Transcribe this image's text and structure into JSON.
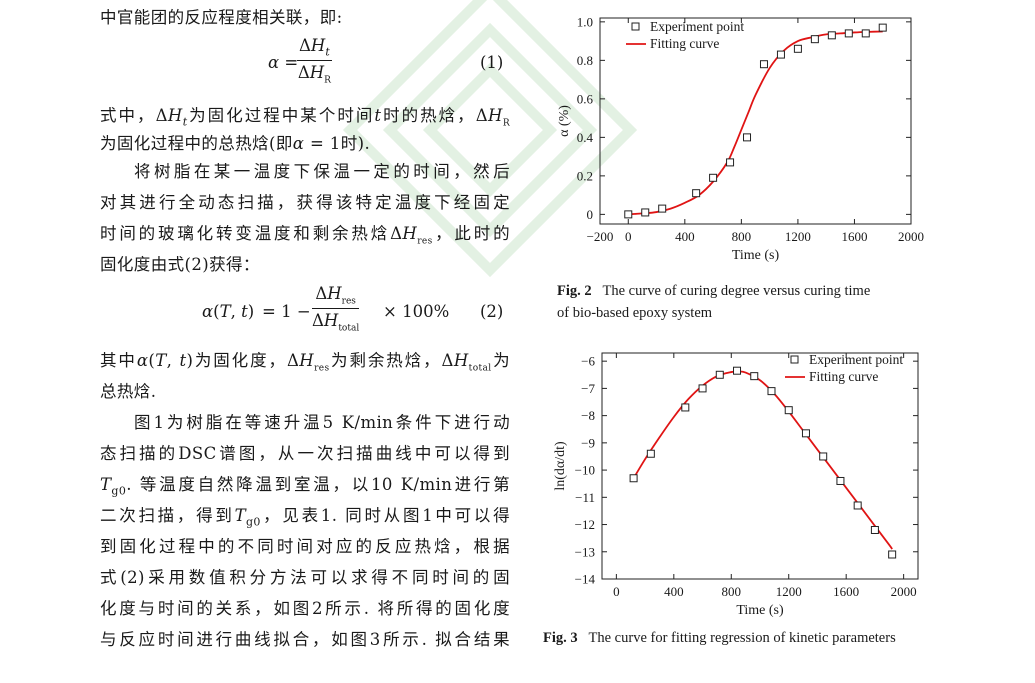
{
  "text": {
    "l1": "中官能团的反应程度相关联，即:",
    "eq1_label": "(1)",
    "l2_prefix": "式中，",
    "l2_a": "为固化过程中某个时间",
    "l2_b": "时的热焓，",
    "l3": "为固化过程中的总热焓(即",
    "l3_tail": " = 1时).",
    "l4": "将树脂在某一温度下保温一定的时间，然后",
    "l5": "对其进行全动态扫描，获得该特定温度下经固定",
    "l6": "时间的玻璃化转变温度和剩余热焓",
    "l6_tail": "，此时的",
    "l7": "固化度由式(2)获得：",
    "eq2_rhs_pre": "= 1 −",
    "eq2_rhs_post": "× 100%",
    "eq2_label": "(2)",
    "l8_a": "其中",
    "l8_b": "为固化度，",
    "l8_c": "为剩余热焓，",
    "l8_d": "为",
    "l9": "总热焓.",
    "l10": "图1为树脂在等速升温5 K/min条件下进行动",
    "l11": "态扫描的DSC谱图，从一次扫描曲线中可以得到",
    "l12_b": ". 等温度自然降温到室温，以10 K/min进行第",
    "l13_a": "二次扫描，得到",
    "l13_b": "，见表1. 同时从图1中可以得",
    "l14": "到固化过程中的不同时间对应的反应热焓，根据",
    "l15": "式(2)采用数值积分方法可以求得不同时间的固",
    "l16": "化度与时间的关系，如图2所示. 将所得的固化度",
    "l17": "与反应时间进行曲线拟合，如图3所示. 拟合结果"
  },
  "fig2": {
    "caption_label": "Fig. 2",
    "caption_text": "The curve of curing degree versus curing time",
    "caption_text2": "of bio-based epoxy system"
  },
  "fig3": {
    "caption_label": "Fig. 3",
    "caption_text": "The curve for fitting regression of kinetic parameters"
  },
  "chart_data": [
    {
      "type": "scatter",
      "title": "",
      "xlabel": "Time (s)",
      "ylabel": "α (%)",
      "xlim": [
        -200,
        2000
      ],
      "ylim": [
        -0.05,
        1.02
      ],
      "x_ticks": [
        "−200",
        "0",
        "400",
        "800",
        "1200",
        "1600",
        "2000"
      ],
      "x_tick_values": [
        -200,
        0,
        400,
        800,
        1200,
        1600,
        2000
      ],
      "y_ticks": [
        "0",
        "0.2",
        "0.4",
        "0.6",
        "0.8",
        "1.0"
      ],
      "y_tick_values": [
        0,
        0.2,
        0.4,
        0.6,
        0.8,
        1.0
      ],
      "legend_position": "top-left",
      "series": [
        {
          "name": "Experiment point",
          "marker": "open-square",
          "x": [
            0,
            120,
            240,
            480,
            600,
            720,
            840,
            960,
            1080,
            1200,
            1320,
            1440,
            1560,
            1680,
            1800
          ],
          "y": [
            0.0,
            0.01,
            0.03,
            0.11,
            0.19,
            0.27,
            0.4,
            0.78,
            0.83,
            0.86,
            0.91,
            0.93,
            0.94,
            0.94,
            0.97
          ]
        },
        {
          "name": "Fitting curve",
          "color": "#e01414",
          "x": [
            0,
            100,
            200,
            300,
            400,
            500,
            600,
            700,
            750,
            800,
            850,
            900,
            1000,
            1100,
            1200,
            1300,
            1400,
            1500,
            1600,
            1700,
            1800
          ],
          "y": [
            0.0,
            0.005,
            0.012,
            0.03,
            0.06,
            0.1,
            0.17,
            0.27,
            0.35,
            0.44,
            0.53,
            0.62,
            0.76,
            0.85,
            0.9,
            0.92,
            0.935,
            0.94,
            0.945,
            0.948,
            0.95
          ]
        }
      ]
    },
    {
      "type": "scatter",
      "title": "",
      "xlabel": "Time (s)",
      "ylabel": "ln(dα/dt)",
      "xlim": [
        -100,
        2100
      ],
      "ylim": [
        -14,
        -5.7
      ],
      "x_ticks": [
        "0",
        "400",
        "800",
        "1200",
        "1600",
        "2000"
      ],
      "x_tick_values": [
        0,
        400,
        800,
        1200,
        1600,
        2000
      ],
      "y_ticks": [
        "−6",
        "−7",
        "−8",
        "−9",
        "−10",
        "−11",
        "−12",
        "−13",
        "−14"
      ],
      "y_tick_values": [
        -6,
        -7,
        -8,
        -9,
        -10,
        -11,
        -12,
        -13,
        -14
      ],
      "legend_position": "top-right",
      "series": [
        {
          "name": "Experiment point",
          "marker": "open-square",
          "x": [
            120,
            240,
            480,
            600,
            720,
            840,
            960,
            1080,
            1200,
            1320,
            1440,
            1560,
            1680,
            1800,
            1920
          ],
          "y": [
            -10.3,
            -9.4,
            -7.7,
            -7.0,
            -6.5,
            -6.35,
            -6.55,
            -7.1,
            -7.8,
            -8.65,
            -9.5,
            -10.4,
            -11.3,
            -12.2,
            -13.1
          ]
        },
        {
          "name": "Fitting curve",
          "color": "#e01414",
          "x": [
            120,
            200,
            300,
            400,
            500,
            600,
            700,
            800,
            850,
            900,
            1000,
            1100,
            1200,
            1300,
            1400,
            1500,
            1600,
            1700,
            1800,
            1900,
            1920
          ],
          "y": [
            -10.3,
            -9.6,
            -8.8,
            -8.05,
            -7.4,
            -6.9,
            -6.55,
            -6.4,
            -6.38,
            -6.42,
            -6.7,
            -7.2,
            -7.85,
            -8.55,
            -9.25,
            -9.95,
            -10.65,
            -11.35,
            -12.05,
            -12.75,
            -12.9
          ]
        }
      ]
    }
  ]
}
